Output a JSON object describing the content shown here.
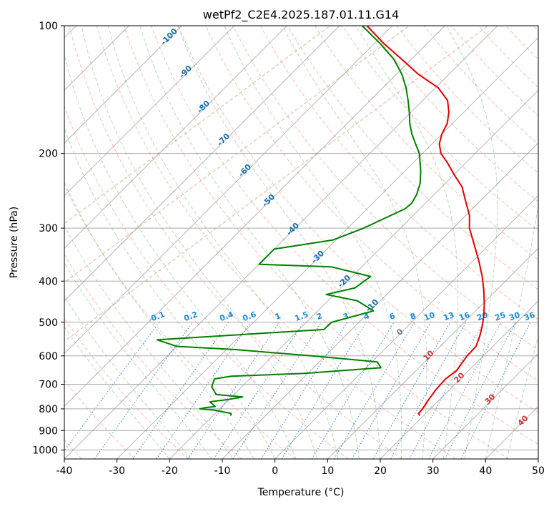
{
  "chart_data": {
    "type": "line",
    "subtype": "skew-t log-p diagram",
    "title": "wetPf2_C2E4.2025.187.01.11.G14",
    "xlabel": "Temperature (°C)",
    "ylabel": "Pressure (hPa)",
    "xlim": [
      -40,
      50
    ],
    "ylim": [
      1050,
      100
    ],
    "y_scale": "log",
    "x_ticks": [
      "-40",
      "-30",
      "-20",
      "-10",
      "0",
      "10",
      "20",
      "30",
      "40",
      "50"
    ],
    "y_ticks": [
      "100",
      "200",
      "300",
      "400",
      "500",
      "600",
      "700",
      "800",
      "900",
      "1000"
    ],
    "grid": true,
    "dry_adiabat_labels": [
      "-100",
      "-90",
      "-80",
      "-70",
      "-60",
      "-50",
      "-40",
      "-30",
      "-20",
      "-10"
    ],
    "moist_adiabat_labels": [
      "0",
      "10",
      "20",
      "30",
      "40"
    ],
    "mixing_ratio_labels": [
      "0.1",
      "0.2",
      "0.4",
      "0.6",
      "1",
      "1.5",
      "2",
      "3",
      "4",
      "6",
      "8",
      "10",
      "13",
      "16",
      "20",
      "25",
      "30",
      "36"
    ],
    "series": [
      {
        "role": "temperature",
        "color": "#e00000",
        "points": [
          {
            "p": 830,
            "t": 19.3
          },
          {
            "p": 820,
            "t": 18.6
          },
          {
            "p": 800,
            "t": 18.5
          },
          {
            "p": 760,
            "t": 17.9
          },
          {
            "p": 720,
            "t": 17.4
          },
          {
            "p": 680,
            "t": 17.2
          },
          {
            "p": 650,
            "t": 17.7
          },
          {
            "p": 630,
            "t": 17.4
          },
          {
            "p": 600,
            "t": 16.9
          },
          {
            "p": 570,
            "t": 16.8
          },
          {
            "p": 540,
            "t": 15.6
          },
          {
            "p": 510,
            "t": 14.1
          },
          {
            "p": 480,
            "t": 12.3
          },
          {
            "p": 450,
            "t": 10.1
          },
          {
            "p": 420,
            "t": 7.6
          },
          {
            "p": 390,
            "t": 4.7
          },
          {
            "p": 360,
            "t": 1.3
          },
          {
            "p": 330,
            "t": -2.6
          },
          {
            "p": 300,
            "t": -6.9
          },
          {
            "p": 280,
            "t": -9.3
          },
          {
            "p": 260,
            "t": -12.6
          },
          {
            "p": 240,
            "t": -16.1
          },
          {
            "p": 225,
            "t": -19.8
          },
          {
            "p": 210,
            "t": -23.6
          },
          {
            "p": 200,
            "t": -26.5
          },
          {
            "p": 190,
            "t": -28.6
          },
          {
            "p": 180,
            "t": -30.0
          },
          {
            "p": 170,
            "t": -31.0
          },
          {
            "p": 160,
            "t": -32.8
          },
          {
            "p": 150,
            "t": -35.3
          },
          {
            "p": 140,
            "t": -39.5
          },
          {
            "p": 130,
            "t": -45.9
          },
          {
            "p": 120,
            "t": -51.8
          },
          {
            "p": 110,
            "t": -58.3
          },
          {
            "p": 100,
            "t": -64.8
          }
        ]
      },
      {
        "role": "dewpoint",
        "color": "#008000",
        "points": [
          {
            "p": 830,
            "t": -16.6
          },
          {
            "p": 820,
            "t": -17.0
          },
          {
            "p": 805,
            "t": -21.0
          },
          {
            "p": 800,
            "t": -23.8
          },
          {
            "p": 795,
            "t": -23.0
          },
          {
            "p": 790,
            "t": -21.3
          },
          {
            "p": 770,
            "t": -23.2
          },
          {
            "p": 760,
            "t": -20.1
          },
          {
            "p": 750,
            "t": -17.9
          },
          {
            "p": 740,
            "t": -23.4
          },
          {
            "p": 710,
            "t": -25.7
          },
          {
            "p": 680,
            "t": -26.7
          },
          {
            "p": 670,
            "t": -24.0
          },
          {
            "p": 660,
            "t": -10.8
          },
          {
            "p": 640,
            "t": 2.8
          },
          {
            "p": 620,
            "t": 1.0
          },
          {
            "p": 600,
            "t": -12.6
          },
          {
            "p": 580,
            "t": -28.2
          },
          {
            "p": 570,
            "t": -40.0
          },
          {
            "p": 550,
            "t": -45.0
          },
          {
            "p": 520,
            "t": -15.3
          },
          {
            "p": 500,
            "t": -15.2
          },
          {
            "p": 470,
            "t": -9.4
          },
          {
            "p": 445,
            "t": -14.4
          },
          {
            "p": 430,
            "t": -21.5
          },
          {
            "p": 415,
            "t": -17.3
          },
          {
            "p": 390,
            "t": -16.5
          },
          {
            "p": 370,
            "t": -25.8
          },
          {
            "p": 365,
            "t": -40.0
          },
          {
            "p": 336,
            "t": -40.0
          },
          {
            "p": 320,
            "t": -30.6
          },
          {
            "p": 300,
            "t": -27.0
          },
          {
            "p": 270,
            "t": -22.8
          },
          {
            "p": 262,
            "t": -22.6
          },
          {
            "p": 250,
            "t": -23.3
          },
          {
            "p": 235,
            "t": -24.8
          },
          {
            "p": 220,
            "t": -27.0
          },
          {
            "p": 200,
            "t": -30.6
          },
          {
            "p": 190,
            "t": -33.1
          },
          {
            "p": 180,
            "t": -35.7
          },
          {
            "p": 170,
            "t": -38.1
          },
          {
            "p": 160,
            "t": -40.3
          },
          {
            "p": 150,
            "t": -42.8
          },
          {
            "p": 140,
            "t": -45.6
          },
          {
            "p": 130,
            "t": -49.0
          },
          {
            "p": 120,
            "t": -53.3
          },
          {
            "p": 110,
            "t": -59.0
          },
          {
            "p": 100,
            "t": -65.7
          }
        ]
      }
    ]
  }
}
